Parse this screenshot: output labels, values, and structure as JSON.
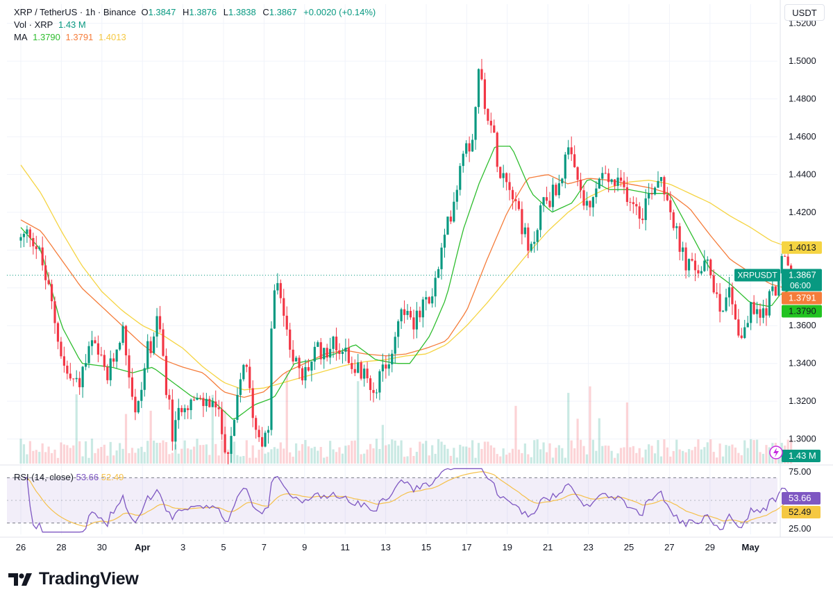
{
  "header": {
    "symbol": "XRP / TetherUS · 1h · Binance",
    "o_label": "O",
    "o_value": "1.3847",
    "h_label": "H",
    "h_value": "1.3876",
    "l_label": "L",
    "l_value": "1.3838",
    "c_label": "C",
    "c_value": "1.3867",
    "change": "+0.0020 (+0.14%)",
    "vol_label": "Vol · XRP",
    "vol_value": "1.43 M",
    "ma_label": "MA",
    "ma1": "1.3790",
    "ma2": "1.3791",
    "ma3": "1.4013"
  },
  "currency": "USDT",
  "brand": {
    "name": "TradingView"
  },
  "rsi_legend": {
    "label": "RSI (14, close)",
    "value1": "53.66",
    "value2": "52.49"
  },
  "colors": {
    "up": "#089981",
    "down": "#f23645",
    "ma_fast": "#2ebd2e",
    "ma_mid": "#f57c3a",
    "ma_slow": "#f5d442",
    "rsi": "#7e57c2",
    "rsi_ma": "#f5c04a"
  },
  "chart_data": [
    {
      "type": "candlestick",
      "title": "XRP / TetherUS · 1h · Binance",
      "y_axis_ticks": [
        "1.5200",
        "1.5000",
        "1.4800",
        "1.4600",
        "1.4400",
        "1.4200",
        "1.4000",
        "1.3800",
        "1.3600",
        "1.3400",
        "1.3200",
        "1.3000"
      ],
      "x_axis_ticks": [
        "26",
        "28",
        "30",
        "Apr",
        "3",
        "5",
        "7",
        "9",
        "11",
        "13",
        "15",
        "17",
        "19",
        "21",
        "23",
        "25",
        "27",
        "29",
        "May"
      ],
      "ylim": [
        1.287,
        1.525
      ],
      "close_path": [
        {
          "day": 0,
          "price": 1.405
        },
        {
          "day": 0.5,
          "price": 1.41
        },
        {
          "day": 1,
          "price": 1.395
        },
        {
          "day": 1.5,
          "price": 1.372
        },
        {
          "day": 2.2,
          "price": 1.335
        },
        {
          "day": 2.8,
          "price": 1.328
        },
        {
          "day": 3.5,
          "price": 1.35
        },
        {
          "day": 4.3,
          "price": 1.332
        },
        {
          "day": 5,
          "price": 1.36
        },
        {
          "day": 5.7,
          "price": 1.31
        },
        {
          "day": 6.2,
          "price": 1.345
        },
        {
          "day": 6.8,
          "price": 1.362
        },
        {
          "day": 7.5,
          "price": 1.3
        },
        {
          "day": 8,
          "price": 1.322
        },
        {
          "day": 8.8,
          "price": 1.318
        },
        {
          "day": 9.5,
          "price": 1.32
        },
        {
          "day": 10.3,
          "price": 1.29
        },
        {
          "day": 11,
          "price": 1.343
        },
        {
          "day": 11.6,
          "price": 1.305
        },
        {
          "day": 12.2,
          "price": 1.298
        },
        {
          "day": 12.4,
          "price": 1.375
        },
        {
          "day": 12.7,
          "price": 1.38
        },
        {
          "day": 13.2,
          "price": 1.355
        },
        {
          "day": 13.8,
          "price": 1.33
        },
        {
          "day": 14.5,
          "price": 1.345
        },
        {
          "day": 15.3,
          "price": 1.35
        },
        {
          "day": 16,
          "price": 1.348
        },
        {
          "day": 16.5,
          "price": 1.338
        },
        {
          "day": 17.3,
          "price": 1.328
        },
        {
          "day": 18,
          "price": 1.335
        },
        {
          "day": 18.8,
          "price": 1.37
        },
        {
          "day": 19.5,
          "price": 1.362
        },
        {
          "day": 20.4,
          "price": 1.38
        },
        {
          "day": 21,
          "price": 1.41
        },
        {
          "day": 21.6,
          "price": 1.44
        },
        {
          "day": 21.9,
          "price": 1.46
        },
        {
          "day": 22.2,
          "price": 1.455
        },
        {
          "day": 22.6,
          "price": 1.495
        },
        {
          "day": 23.1,
          "price": 1.47
        },
        {
          "day": 23.6,
          "price": 1.445
        },
        {
          "day": 24.2,
          "price": 1.435
        },
        {
          "day": 24.6,
          "price": 1.42
        },
        {
          "day": 25.1,
          "price": 1.395
        },
        {
          "day": 25.7,
          "price": 1.425
        },
        {
          "day": 26.3,
          "price": 1.43
        },
        {
          "day": 27,
          "price": 1.45
        },
        {
          "day": 27.5,
          "price": 1.435
        },
        {
          "day": 28,
          "price": 1.418
        },
        {
          "day": 28.6,
          "price": 1.44
        },
        {
          "day": 29.2,
          "price": 1.435
        },
        {
          "day": 30,
          "price": 1.43
        },
        {
          "day": 30.6,
          "price": 1.42
        },
        {
          "day": 31.2,
          "price": 1.435
        },
        {
          "day": 31.6,
          "price": 1.44
        },
        {
          "day": 32,
          "price": 1.425
        },
        {
          "day": 32.5,
          "price": 1.4
        },
        {
          "day": 33,
          "price": 1.39
        },
        {
          "day": 33.5,
          "price": 1.39
        },
        {
          "day": 34,
          "price": 1.39
        },
        {
          "day": 34.5,
          "price": 1.37
        },
        {
          "day": 35,
          "price": 1.38
        },
        {
          "day": 35.5,
          "price": 1.352
        },
        {
          "day": 36,
          "price": 1.368
        },
        {
          "day": 36.5,
          "price": 1.365
        },
        {
          "day": 37.2,
          "price": 1.38
        },
        {
          "day": 37.6,
          "price": 1.395
        },
        {
          "day": 38,
          "price": 1.387
        }
      ],
      "ma_fast_path": [
        {
          "day": 0,
          "price": 1.412
        },
        {
          "day": 1,
          "price": 1.4
        },
        {
          "day": 2,
          "price": 1.36
        },
        {
          "day": 3,
          "price": 1.34
        },
        {
          "day": 4.5,
          "price": 1.338
        },
        {
          "day": 5.5,
          "price": 1.335
        },
        {
          "day": 6.5,
          "price": 1.338
        },
        {
          "day": 7.5,
          "price": 1.33
        },
        {
          "day": 8.5,
          "price": 1.322
        },
        {
          "day": 9.5,
          "price": 1.32
        },
        {
          "day": 10.5,
          "price": 1.31
        },
        {
          "day": 11.5,
          "price": 1.318
        },
        {
          "day": 12.5,
          "price": 1.322
        },
        {
          "day": 13.5,
          "price": 1.34
        },
        {
          "day": 14.5,
          "price": 1.342
        },
        {
          "day": 15.5,
          "price": 1.345
        },
        {
          "day": 16.5,
          "price": 1.35
        },
        {
          "day": 17.5,
          "price": 1.342
        },
        {
          "day": 18.5,
          "price": 1.34
        },
        {
          "day": 19.2,
          "price": 1.34
        },
        {
          "day": 20.2,
          "price": 1.355
        },
        {
          "day": 21,
          "price": 1.375
        },
        {
          "day": 21.8,
          "price": 1.41
        },
        {
          "day": 22.6,
          "price": 1.435
        },
        {
          "day": 23.4,
          "price": 1.455
        },
        {
          "day": 24.2,
          "price": 1.455
        },
        {
          "day": 25.2,
          "price": 1.43
        },
        {
          "day": 26.2,
          "price": 1.42
        },
        {
          "day": 27.2,
          "price": 1.425
        },
        {
          "day": 28,
          "price": 1.438
        },
        {
          "day": 29,
          "price": 1.432
        },
        {
          "day": 30,
          "price": 1.432
        },
        {
          "day": 31,
          "price": 1.43
        },
        {
          "day": 32,
          "price": 1.43
        },
        {
          "day": 33,
          "price": 1.41
        },
        {
          "day": 34,
          "price": 1.39
        },
        {
          "day": 35,
          "price": 1.382
        },
        {
          "day": 36,
          "price": 1.372
        },
        {
          "day": 37,
          "price": 1.37
        },
        {
          "day": 37.5,
          "price": 1.377
        },
        {
          "day": 38,
          "price": 1.379
        }
      ],
      "ma_mid_path": [
        {
          "day": 0,
          "price": 1.416
        },
        {
          "day": 1,
          "price": 1.41
        },
        {
          "day": 2,
          "price": 1.395
        },
        {
          "day": 3,
          "price": 1.38
        },
        {
          "day": 4,
          "price": 1.37
        },
        {
          "day": 5,
          "price": 1.36
        },
        {
          "day": 6,
          "price": 1.35
        },
        {
          "day": 7,
          "price": 1.342
        },
        {
          "day": 8,
          "price": 1.338
        },
        {
          "day": 9,
          "price": 1.335
        },
        {
          "day": 10,
          "price": 1.325
        },
        {
          "day": 11,
          "price": 1.322
        },
        {
          "day": 12,
          "price": 1.325
        },
        {
          "day": 13,
          "price": 1.335
        },
        {
          "day": 14,
          "price": 1.34
        },
        {
          "day": 15,
          "price": 1.345
        },
        {
          "day": 16,
          "price": 1.347
        },
        {
          "day": 17,
          "price": 1.345
        },
        {
          "day": 18,
          "price": 1.344
        },
        {
          "day": 19,
          "price": 1.345
        },
        {
          "day": 20,
          "price": 1.348
        },
        {
          "day": 21,
          "price": 1.352
        },
        {
          "day": 22,
          "price": 1.368
        },
        {
          "day": 23,
          "price": 1.395
        },
        {
          "day": 24,
          "price": 1.42
        },
        {
          "day": 25,
          "price": 1.438
        },
        {
          "day": 26,
          "price": 1.44
        },
        {
          "day": 27,
          "price": 1.435
        },
        {
          "day": 28,
          "price": 1.438
        },
        {
          "day": 29,
          "price": 1.437
        },
        {
          "day": 30,
          "price": 1.435
        },
        {
          "day": 31,
          "price": 1.433
        },
        {
          "day": 32,
          "price": 1.43
        },
        {
          "day": 33,
          "price": 1.422
        },
        {
          "day": 34,
          "price": 1.408
        },
        {
          "day": 35,
          "price": 1.395
        },
        {
          "day": 36,
          "price": 1.388
        },
        {
          "day": 37,
          "price": 1.382
        },
        {
          "day": 38,
          "price": 1.379
        }
      ],
      "ma_slow_path": [
        {
          "day": 0,
          "price": 1.445
        },
        {
          "day": 1,
          "price": 1.43
        },
        {
          "day": 2,
          "price": 1.41
        },
        {
          "day": 3,
          "price": 1.392
        },
        {
          "day": 4,
          "price": 1.378
        },
        {
          "day": 5,
          "price": 1.368
        },
        {
          "day": 6,
          "price": 1.36
        },
        {
          "day": 7,
          "price": 1.355
        },
        {
          "day": 8,
          "price": 1.348
        },
        {
          "day": 9,
          "price": 1.338
        },
        {
          "day": 10,
          "price": 1.33
        },
        {
          "day": 11,
          "price": 1.326
        },
        {
          "day": 12,
          "price": 1.327
        },
        {
          "day": 13,
          "price": 1.33
        },
        {
          "day": 14,
          "price": 1.333
        },
        {
          "day": 15,
          "price": 1.336
        },
        {
          "day": 16,
          "price": 1.339
        },
        {
          "day": 17,
          "price": 1.341
        },
        {
          "day": 18,
          "price": 1.342
        },
        {
          "day": 19,
          "price": 1.344
        },
        {
          "day": 20,
          "price": 1.345
        },
        {
          "day": 21,
          "price": 1.35
        },
        {
          "day": 22,
          "price": 1.36
        },
        {
          "day": 23,
          "price": 1.372
        },
        {
          "day": 24,
          "price": 1.385
        },
        {
          "day": 25,
          "price": 1.398
        },
        {
          "day": 26,
          "price": 1.41
        },
        {
          "day": 27,
          "price": 1.42
        },
        {
          "day": 28,
          "price": 1.428
        },
        {
          "day": 29,
          "price": 1.433
        },
        {
          "day": 30,
          "price": 1.436
        },
        {
          "day": 31,
          "price": 1.437
        },
        {
          "day": 32,
          "price": 1.435
        },
        {
          "day": 33,
          "price": 1.43
        },
        {
          "day": 34,
          "price": 1.425
        },
        {
          "day": 35,
          "price": 1.418
        },
        {
          "day": 36,
          "price": 1.412
        },
        {
          "day": 37,
          "price": 1.405
        },
        {
          "day": 38,
          "price": 1.401
        }
      ],
      "last_price": 1.3867,
      "price_labels": [
        {
          "text": "1.4013",
          "price": 1.4013,
          "series": "ma3"
        },
        {
          "text": "1.3867",
          "price": 1.3867,
          "series": "last",
          "sub": "06:00",
          "tag": "XRPUSDT"
        },
        {
          "text": "1.3791",
          "price": 1.3791,
          "series": "ma2"
        },
        {
          "text": "1.3790",
          "price": 1.379,
          "series": "ma1"
        }
      ],
      "volume_label": "1.43 M"
    },
    {
      "type": "line",
      "title": "RSI (14, close)",
      "y_axis_ticks": [
        "75.00",
        "25.00"
      ],
      "band": [
        30,
        70
      ],
      "ylim": [
        20,
        80
      ],
      "last_rsi": 53.66,
      "last_rsi_ma": 52.49
    }
  ]
}
